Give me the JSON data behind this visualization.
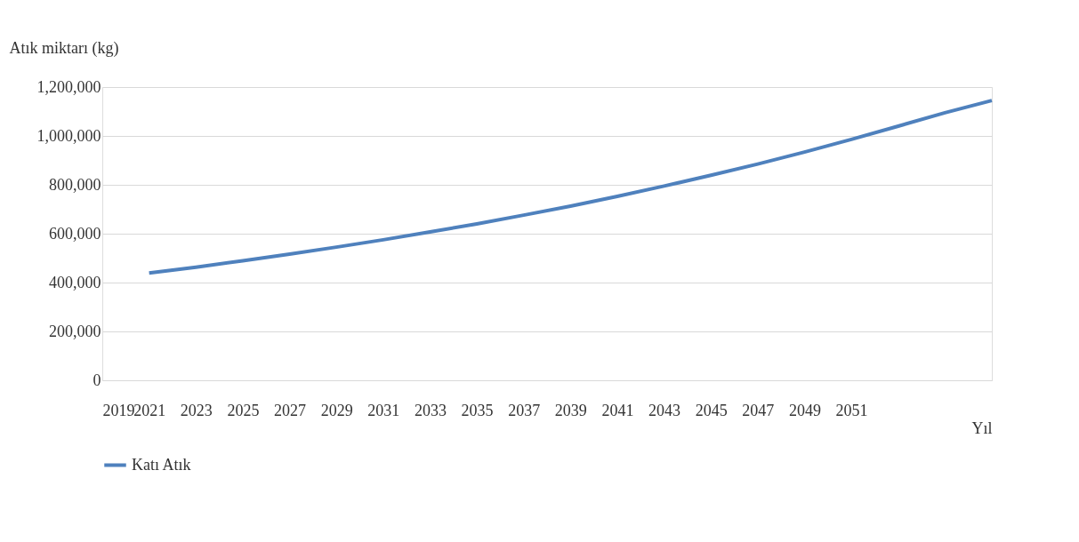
{
  "chart_data": {
    "type": "line",
    "ylabel": "Atık miktarı (kg)",
    "xlabel": "Yıl",
    "x": [
      2021,
      2023,
      2025,
      2027,
      2029,
      2031,
      2033,
      2035,
      2037,
      2039,
      2041,
      2043,
      2045,
      2047,
      2049,
      2051,
      2053,
      2055,
      2057
    ],
    "series": [
      {
        "name": "Katı Atık",
        "color": "#4f81bd",
        "values": [
          439000,
          463000,
          489000,
          516000,
          545000,
          575000,
          607000,
          640000,
          676000,
          713000,
          753000,
          795000,
          839000,
          885000,
          934000,
          986000,
          1040000,
          1095000,
          1145000
        ]
      }
    ],
    "xlim": [
      2019,
      2057
    ],
    "xticks": [
      2019,
      2021,
      2023,
      2025,
      2027,
      2029,
      2031,
      2033,
      2035,
      2037,
      2039,
      2041,
      2043,
      2045,
      2047,
      2049,
      2051
    ],
    "ylim": [
      0,
      1200000
    ],
    "yticks": [
      0,
      {
        "value": 200000,
        "label": "200,000"
      },
      {
        "value": 400000,
        "label": "400,000"
      },
      {
        "value": 600000,
        "label": "600,000"
      },
      {
        "value": 800000,
        "label": "800,000"
      },
      {
        "value": 1000000,
        "label": "1,000,000"
      },
      {
        "value": 1200000,
        "label": "1,200,000"
      }
    ],
    "grid": "y",
    "legend": "bottom",
    "marker": "none",
    "line_style": "solid"
  }
}
